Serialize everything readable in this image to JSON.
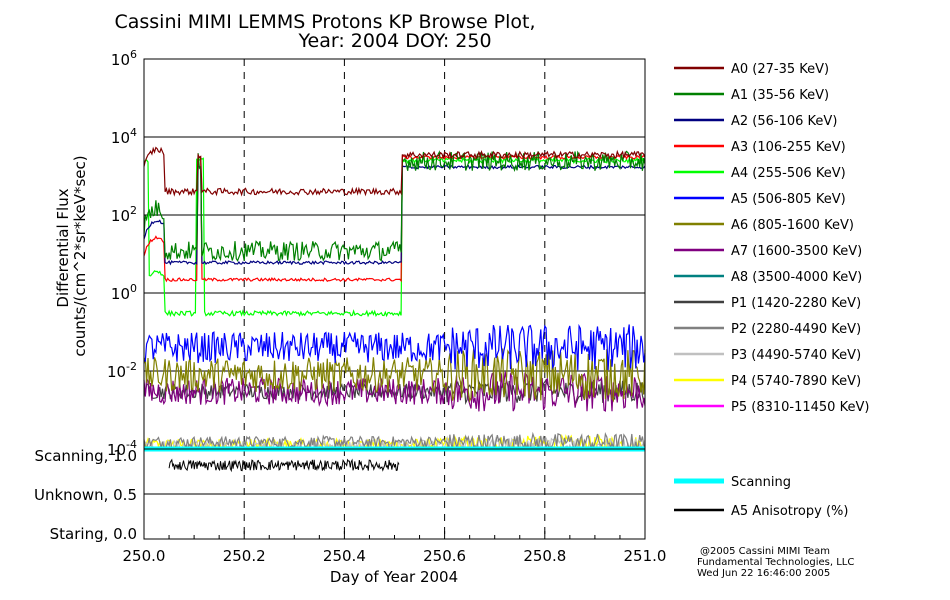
{
  "chart_data": {
    "type": "line",
    "title_line1": "Cassini MIMI LEMMS Protons KP Browse Plot,",
    "title_line2": "Year: 2004 DOY: 250",
    "ylabel_line1": "Differential Flux",
    "ylabel_line2": "counts/(cm^2*sr*keV*sec)",
    "xlabel": "Day of Year 2004",
    "x_range": [
      250.0,
      251.0
    ],
    "x_ticks": [
      "250.0",
      "250.2",
      "250.4",
      "250.6",
      "250.8",
      "251.0"
    ],
    "y_scale": "log",
    "y_range": [
      0.0001,
      1000000.0
    ],
    "y_ticks": [
      {
        "base": "10",
        "exp": "6"
      },
      {
        "base": "10",
        "exp": "4"
      },
      {
        "base": "10",
        "exp": "2"
      },
      {
        "base": "10",
        "exp": "0"
      },
      {
        "base": "10",
        "exp": "-2"
      },
      {
        "base": "10",
        "exp": "-4"
      }
    ],
    "lower_panel_labels": [
      "Scanning, 1.0",
      "Unknown, 0.5",
      "Staring, 0.0"
    ],
    "series": [
      {
        "name": "A0 (27-35 KeV)",
        "color": "#800000",
        "level_early": 400,
        "level_late": 3500,
        "noise": 0.08
      },
      {
        "name": "A1 (35-56 KeV)",
        "color": "#008000",
        "level_early": 12,
        "level_late": 2400,
        "noise": 0.25
      },
      {
        "name": "A2 (56-106 KeV)",
        "color": "#000080",
        "level_early": 6,
        "level_late": 1700,
        "noise": 0.04
      },
      {
        "name": "A3 (106-255 KeV)",
        "color": "#ff0000",
        "level_early": 2.2,
        "level_late": 3000,
        "noise": 0.04
      },
      {
        "name": "A4 (255-506 KeV)",
        "color": "#00ff00",
        "level_early": 0.3,
        "level_late": 2500,
        "noise": 0.06
      },
      {
        "name": "A5 (506-805 KeV)",
        "color": "#0000ff",
        "level_early": 0.04,
        "level_late": 0.04,
        "noise": 0.4
      },
      {
        "name": "A6 (805-1600 KeV)",
        "color": "#808000",
        "level_early": 0.008,
        "level_late": 0.008,
        "noise": 0.45
      },
      {
        "name": "A7 (1600-3500 KeV)",
        "color": "#800080",
        "level_early": 0.003,
        "level_late": 0.003,
        "noise": 0.35
      },
      {
        "name": "A8 (3500-4000 KeV)",
        "color": "#008080",
        "level_early": null,
        "level_late": null,
        "noise": 0
      },
      {
        "name": "P1 (1420-2280 KeV)",
        "color": "#404040",
        "level_early": 0.003,
        "level_late": 0.003,
        "noise": 0.2
      },
      {
        "name": "P2 (2280-4490 KeV)",
        "color": "#808080",
        "level_early": 0.00015,
        "level_late": 0.00015,
        "noise": 0.15
      },
      {
        "name": "P3 (4490-5740 KeV)",
        "color": "#c0c0c0",
        "level_early": 0.00012,
        "level_late": 0.00012,
        "noise": 0.15
      },
      {
        "name": "P4 (5740-7890 KeV)",
        "color": "#ffff00",
        "level_early": 0.00013,
        "level_late": 0.00013,
        "noise": 0.15
      },
      {
        "name": "P5 (8310-11450 KeV)",
        "color": "#ff00ff",
        "level_early": null,
        "level_late": null,
        "noise": 0
      }
    ],
    "lower_series": [
      {
        "name": "Scanning",
        "color": "#00ffff",
        "value": 1.0
      },
      {
        "name": "A5 Anisotropy (%)",
        "color": "#000000",
        "value_range": [
          0.76,
          0.88
        ],
        "x_range": [
          250.05,
          250.51
        ]
      }
    ]
  },
  "credits": {
    "line1": "@2005 Cassini MIMI Team",
    "line2": "Fundamental Technologies, LLC",
    "line3": "Wed Jun 22 16:46:00 2005"
  }
}
